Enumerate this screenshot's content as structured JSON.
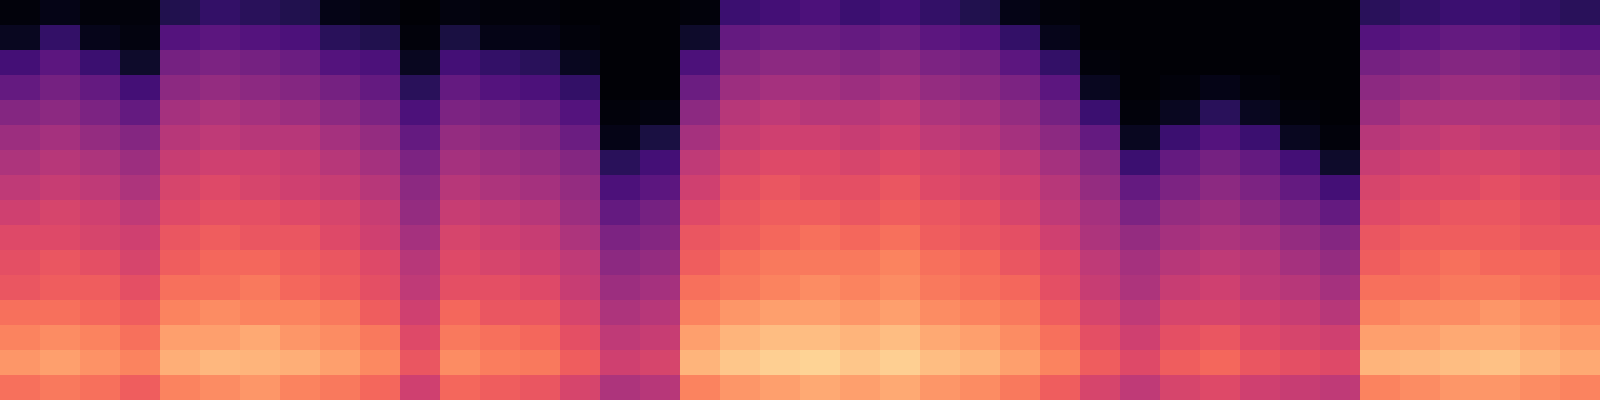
{
  "chart_data": {
    "type": "heatmap",
    "tick_labels": false,
    "color": "magma",
    "zlim": [
      0,
      100
    ],
    "z": [
      [
        70,
        78,
        74,
        70,
        64,
        62,
        60,
        56,
        52,
        48,
        44,
        38,
        30,
        22,
        6,
        2
      ],
      [
        72,
        80,
        76,
        70,
        66,
        64,
        60,
        58,
        54,
        50,
        46,
        40,
        34,
        28,
        18,
        4
      ],
      [
        70,
        77,
        74,
        68,
        66,
        62,
        58,
        56,
        52,
        48,
        42,
        36,
        30,
        20,
        5,
        2
      ],
      [
        66,
        74,
        70,
        66,
        62,
        58,
        56,
        52,
        48,
        44,
        38,
        30,
        22,
        8,
        3,
        2
      ],
      [
        74,
        83,
        80,
        74,
        70,
        66,
        64,
        60,
        58,
        54,
        50,
        46,
        40,
        34,
        26,
        14
      ],
      [
        76,
        85,
        80,
        76,
        70,
        68,
        66,
        62,
        60,
        56,
        52,
        48,
        42,
        36,
        28,
        18
      ],
      [
        78,
        84,
        82,
        74,
        72,
        68,
        64,
        62,
        58,
        56,
        50,
        46,
        40,
        34,
        26,
        16
      ],
      [
        74,
        83,
        78,
        74,
        68,
        66,
        64,
        60,
        56,
        54,
        50,
        44,
        38,
        32,
        24,
        14
      ],
      [
        72,
        80,
        76,
        72,
        66,
        64,
        60,
        58,
        54,
        50,
        46,
        40,
        34,
        26,
        16,
        4
      ],
      [
        68,
        75,
        72,
        66,
        62,
        60,
        56,
        54,
        50,
        46,
        42,
        36,
        30,
        24,
        14,
        3
      ],
      [
        56,
        64,
        60,
        56,
        52,
        50,
        46,
        42,
        40,
        36,
        30,
        24,
        16,
        6,
        2,
        1
      ],
      [
        68,
        76,
        72,
        68,
        62,
        60,
        58,
        54,
        50,
        46,
        42,
        36,
        30,
        22,
        12,
        3
      ],
      [
        66,
        73,
        70,
        64,
        62,
        58,
        56,
        52,
        48,
        44,
        40,
        34,
        26,
        18,
        4,
        2
      ],
      [
        64,
        72,
        68,
        64,
        60,
        56,
        54,
        50,
        46,
        42,
        38,
        32,
        24,
        16,
        4,
        2
      ],
      [
        58,
        66,
        62,
        58,
        54,
        52,
        48,
        44,
        42,
        38,
        32,
        26,
        18,
        6,
        2,
        1
      ],
      [
        48,
        56,
        52,
        48,
        44,
        40,
        36,
        30,
        24,
        16,
        4,
        2,
        1,
        1,
        1,
        1
      ],
      [
        50,
        58,
        54,
        50,
        46,
        42,
        38,
        34,
        28,
        22,
        12,
        3,
        1,
        1,
        1,
        1
      ],
      [
        74,
        84,
        80,
        74,
        70,
        66,
        64,
        60,
        56,
        52,
        46,
        40,
        32,
        24,
        8,
        2
      ],
      [
        78,
        88,
        84,
        78,
        72,
        70,
        66,
        64,
        62,
        58,
        54,
        50,
        44,
        38,
        30,
        20
      ],
      [
        80,
        90,
        86,
        80,
        74,
        72,
        68,
        66,
        64,
        60,
        56,
        52,
        46,
        40,
        32,
        22
      ],
      [
        82,
        91,
        86,
        80,
        76,
        72,
        70,
        66,
        62,
        60,
        56,
        50,
        46,
        40,
        32,
        24
      ],
      [
        80,
        88,
        84,
        78,
        74,
        72,
        68,
        64,
        62,
        58,
        54,
        50,
        44,
        38,
        30,
        20
      ],
      [
        82,
        90,
        86,
        80,
        76,
        74,
        70,
        66,
        64,
        60,
        56,
        52,
        46,
        40,
        32,
        22
      ],
      [
        78,
        86,
        82,
        76,
        72,
        70,
        66,
        64,
        60,
        58,
        52,
        48,
        42,
        36,
        28,
        18
      ],
      [
        76,
        84,
        80,
        74,
        70,
        68,
        64,
        62,
        58,
        56,
        50,
        46,
        40,
        34,
        26,
        14
      ],
      [
        72,
        80,
        76,
        72,
        68,
        64,
        62,
        58,
        56,
        52,
        46,
        42,
        36,
        28,
        18,
        4
      ],
      [
        66,
        74,
        70,
        66,
        62,
        60,
        56,
        52,
        50,
        46,
        40,
        34,
        28,
        18,
        5,
        2
      ],
      [
        58,
        66,
        62,
        58,
        54,
        52,
        48,
        46,
        42,
        38,
        30,
        20,
        6,
        2,
        1,
        1
      ],
      [
        52,
        60,
        56,
        52,
        48,
        46,
        42,
        36,
        30,
        20,
        6,
        2,
        1,
        1,
        1,
        1
      ],
      [
        58,
        66,
        62,
        58,
        54,
        50,
        46,
        42,
        36,
        30,
        20,
        6,
        2,
        1,
        1,
        1
      ],
      [
        60,
        68,
        64,
        58,
        56,
        52,
        48,
        44,
        40,
        34,
        26,
        16,
        4,
        1,
        1,
        1
      ],
      [
        56,
        64,
        60,
        56,
        52,
        50,
        46,
        40,
        36,
        30,
        20,
        6,
        2,
        1,
        1,
        1
      ],
      [
        54,
        62,
        58,
        54,
        50,
        46,
        42,
        36,
        30,
        22,
        6,
        2,
        1,
        1,
        1,
        1
      ],
      [
        52,
        60,
        56,
        50,
        46,
        42,
        38,
        30,
        22,
        8,
        2,
        1,
        1,
        1,
        1,
        1
      ],
      [
        74,
        84,
        80,
        74,
        70,
        66,
        64,
        60,
        58,
        54,
        50,
        44,
        40,
        34,
        26,
        16
      ],
      [
        76,
        85,
        80,
        76,
        70,
        68,
        66,
        62,
        60,
        56,
        52,
        48,
        42,
        36,
        28,
        18
      ],
      [
        78,
        86,
        82,
        76,
        72,
        70,
        66,
        64,
        60,
        58,
        54,
        48,
        44,
        38,
        30,
        20
      ],
      [
        78,
        87,
        82,
        78,
        72,
        68,
        66,
        64,
        62,
        58,
        52,
        48,
        44,
        38,
        30,
        20
      ],
      [
        76,
        84,
        80,
        76,
        70,
        68,
        64,
        62,
        60,
        56,
        52,
        48,
        42,
        36,
        28,
        18
      ],
      [
        74,
        82,
        78,
        74,
        68,
        66,
        64,
        60,
        58,
        54,
        50,
        46,
        40,
        34,
        26,
        16
      ]
    ]
  }
}
